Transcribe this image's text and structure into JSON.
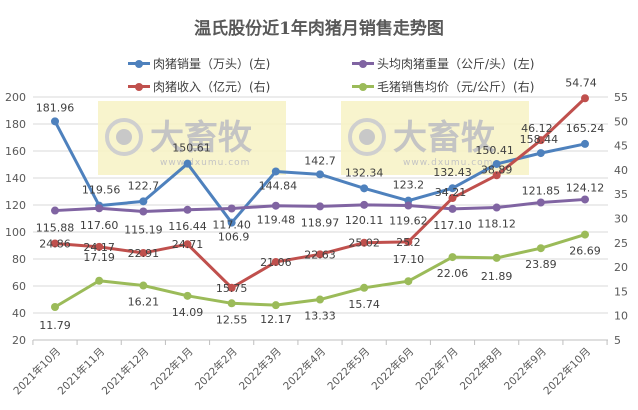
{
  "chart_data": {
    "type": "line",
    "title": "温氏股份近1年肉猪月销售走势图",
    "categories": [
      "2021年10月",
      "2021年11月",
      "2021年12月",
      "2022年1月",
      "2022年2月",
      "2022年3月",
      "2022年4月",
      "2022年5月",
      "2022年6月",
      "2022年7月",
      "2022年8月",
      "2022年9月",
      "2022年10月"
    ],
    "series": [
      {
        "name": "肉猪销量（万头）(左)",
        "axis": "left",
        "color": "#4e81bd",
        "values": [
          181.96,
          119.56,
          122.7,
          150.61,
          106.9,
          144.84,
          142.7,
          132.34,
          123.2,
          132.43,
          150.41,
          158.44,
          165.24
        ],
        "labels": [
          "181.96",
          "119.56",
          "122.7",
          "150.61",
          "106.9",
          "144.84",
          "142.7",
          "132.34",
          "123.2",
          "132.43",
          "150.41",
          "158.44",
          "165.24"
        ]
      },
      {
        "name": "头均肉猪重量（公斤/头）(左)",
        "axis": "left",
        "color": "#8064a2",
        "values": [
          115.88,
          117.6,
          115.19,
          116.44,
          117.4,
          119.48,
          118.97,
          120.11,
          119.62,
          117.1,
          118.12,
          121.85,
          124.12
        ],
        "labels": [
          "115.88",
          "117.60",
          "115.19",
          "116.44",
          "117.40",
          "119.48",
          "118.97",
          "120.11",
          "119.62",
          "117.10",
          "118.12",
          "121.85",
          "124.12"
        ]
      },
      {
        "name": "肉猪收入（亿元）(右)",
        "axis": "right",
        "color": "#c0504d",
        "values": [
          24.86,
          24.17,
          22.91,
          24.71,
          15.75,
          21.06,
          22.63,
          25.02,
          25.2,
          34.21,
          38.89,
          46.12,
          54.74
        ],
        "labels": [
          "24.86",
          "24.17",
          "22.91",
          "24.71",
          "15.75",
          "21.06",
          "22.63",
          "25.02",
          "25.2",
          "34.21",
          "38.89",
          "46.12",
          "54.74"
        ]
      },
      {
        "name": "毛猪销售均价（元/公斤）(右)",
        "axis": "right",
        "color": "#9bbb59",
        "values": [
          11.79,
          17.19,
          16.21,
          14.09,
          12.55,
          12.17,
          13.33,
          15.74,
          17.1,
          22.06,
          21.89,
          23.89,
          26.69
        ],
        "labels": [
          "11.79",
          "17.19",
          "16.21",
          "14.09",
          "12.55",
          "12.17",
          "13.33",
          "15.74",
          "17.10",
          "22.06",
          "21.89",
          "23.89",
          "26.69"
        ]
      }
    ],
    "y_left": {
      "min": 20,
      "max": 200,
      "ticks": [
        "200",
        "180",
        "160",
        "140",
        "120",
        "100",
        "80",
        "60",
        "40",
        "20"
      ]
    },
    "y_right": {
      "min": 5,
      "max": 55,
      "ticks": [
        "55",
        "50",
        "45",
        "40",
        "35",
        "30",
        "25",
        "20",
        "15",
        "10",
        "5"
      ]
    },
    "grid": true,
    "legend_position": "top",
    "watermark": {
      "brand": "大畜牧",
      "url": "www.dxumu.com"
    }
  },
  "legend": {
    "items": [
      "肉猪销量（万头）(左)",
      "头均肉猪重量（公斤/头）(左)",
      "肉猪收入（亿元）(右)",
      "毛猪销售均价（元/公斤）(右)"
    ]
  }
}
